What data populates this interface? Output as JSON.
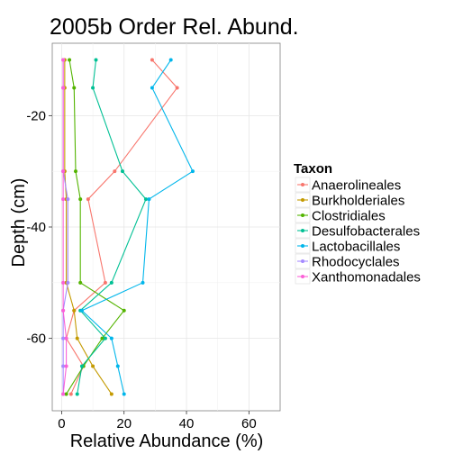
{
  "chart_data": {
    "type": "line",
    "title": "2005b Order Rel. Abund.",
    "xlabel": "Relative Abundance (%)",
    "ylabel": "Depth (cm)",
    "xlim": [
      -3,
      70
    ],
    "ylim": [
      -73,
      -7
    ],
    "x_ticks": [
      0,
      20,
      40,
      60
    ],
    "y_ticks": [
      -20,
      -40,
      -60
    ],
    "grid": true,
    "legend": {
      "title": "Taxon",
      "placement": "right"
    },
    "depths": [
      -10,
      -15,
      -30,
      -35,
      -50,
      -55,
      -60,
      -65,
      -70
    ],
    "series": [
      {
        "name": "Anaerolineales",
        "color": "#F8766D",
        "points": [
          [
            29,
            -10
          ],
          [
            37,
            -15
          ],
          [
            17,
            -30
          ],
          [
            8.5,
            -35
          ],
          [
            14,
            -50
          ],
          [
            4,
            -55
          ],
          [
            1.5,
            -60
          ],
          [
            7,
            -65
          ],
          [
            3,
            -70
          ]
        ]
      },
      {
        "name": "Burkholderiales",
        "color": "#C49A00",
        "points": [
          [
            1,
            -10
          ],
          [
            1,
            -15
          ],
          [
            1,
            -30
          ],
          [
            1.5,
            -35
          ],
          [
            1.5,
            -50
          ],
          [
            4,
            -55
          ],
          [
            5,
            -60
          ],
          [
            10,
            -65
          ],
          [
            16,
            -70
          ]
        ]
      },
      {
        "name": "Clostridiales",
        "color": "#53B400",
        "points": [
          [
            2.5,
            -10
          ],
          [
            4,
            -15
          ],
          [
            4.5,
            -30
          ],
          [
            6,
            -35
          ],
          [
            6,
            -50
          ],
          [
            20,
            -55
          ],
          [
            13,
            -60
          ],
          [
            7,
            -65
          ],
          [
            1.5,
            -70
          ]
        ]
      },
      {
        "name": "Desulfobacterales",
        "color": "#00C094",
        "points": [
          [
            11,
            -10
          ],
          [
            10,
            -15
          ],
          [
            19.5,
            -30
          ],
          [
            27,
            -35
          ],
          [
            16,
            -50
          ],
          [
            6,
            -55
          ],
          [
            14,
            -60
          ],
          [
            6.5,
            -65
          ],
          [
            5,
            -70
          ]
        ]
      },
      {
        "name": "Lactobacillales",
        "color": "#00B6EB",
        "points": [
          [
            35,
            -10
          ],
          [
            29,
            -15
          ],
          [
            42,
            -30
          ],
          [
            28,
            -35
          ],
          [
            26,
            -50
          ],
          [
            6.5,
            -55
          ],
          [
            16,
            -60
          ],
          [
            18,
            -65
          ],
          [
            20,
            -70
          ]
        ]
      },
      {
        "name": "Rhodocyclales",
        "color": "#A58AFF",
        "points": [
          [
            0.5,
            -10
          ],
          [
            0.5,
            -15
          ],
          [
            0.5,
            -30
          ],
          [
            2,
            -35
          ],
          [
            2,
            -50
          ],
          [
            0.5,
            -55
          ],
          [
            0.5,
            -60
          ],
          [
            0.5,
            -65
          ],
          [
            0.5,
            -70
          ]
        ]
      },
      {
        "name": "Xanthomonadales",
        "color": "#FB61D7",
        "points": [
          [
            0.5,
            -10
          ],
          [
            0.5,
            -15
          ],
          [
            0.5,
            -30
          ],
          [
            0.5,
            -35
          ],
          [
            0.5,
            -50
          ],
          [
            0.5,
            -55
          ],
          [
            1.5,
            -60
          ],
          [
            1.5,
            -65
          ],
          [
            0.5,
            -70
          ]
        ]
      }
    ]
  }
}
